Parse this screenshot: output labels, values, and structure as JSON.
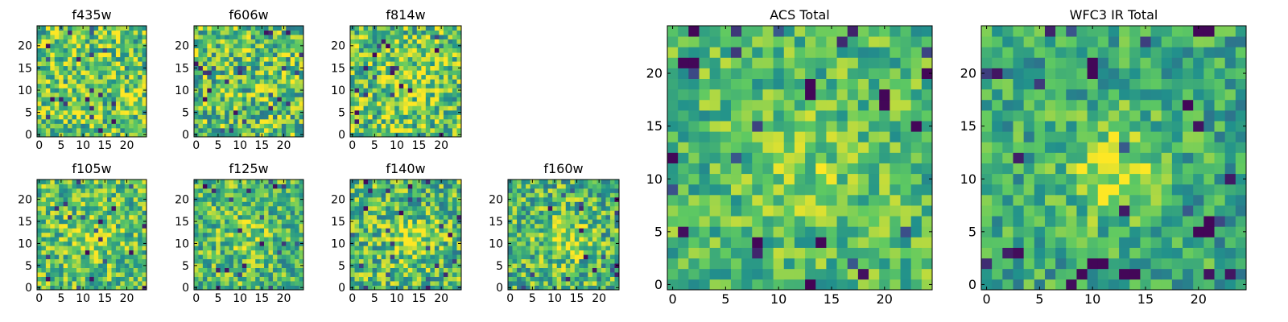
{
  "figure": {
    "background": "#ffffff",
    "colormap": "viridis",
    "colormap_stops": [
      "#440154",
      "#3b528b",
      "#21918c",
      "#5ec962",
      "#fde725"
    ]
  },
  "chart_data": [
    {
      "id": "f435w",
      "type": "heatmap",
      "title": "f435w",
      "grid_size": 25,
      "xticks": [
        0,
        5,
        10,
        15,
        20
      ],
      "yticks": [
        0,
        5,
        10,
        15,
        20
      ],
      "xlim": [
        -0.5,
        24.5
      ],
      "ylim": [
        -0.5,
        24.5
      ],
      "values_summary": "noise field, mean ~0.78 of colormap range, few dark pixels",
      "seed": 11,
      "mean": 0.74,
      "spread": 0.32,
      "blobs": []
    },
    {
      "id": "f606w",
      "type": "heatmap",
      "title": "f606w",
      "grid_size": 25,
      "xticks": [
        0,
        5,
        10,
        15,
        20
      ],
      "yticks": [
        0,
        5,
        10,
        15,
        20
      ],
      "xlim": [
        -0.5,
        24.5
      ],
      "ylim": [
        -0.5,
        24.5
      ],
      "seed": 23,
      "mean": 0.72,
      "spread": 0.34,
      "blobs": []
    },
    {
      "id": "f814w",
      "type": "heatmap",
      "title": "f814w",
      "grid_size": 25,
      "xticks": [
        0,
        5,
        10,
        15,
        20
      ],
      "yticks": [
        0,
        5,
        10,
        15,
        20
      ],
      "xlim": [
        -0.5,
        24.5
      ],
      "ylim": [
        -0.5,
        24.5
      ],
      "seed": 37,
      "mean": 0.72,
      "spread": 0.32,
      "blobs": [
        {
          "x": 12,
          "y": 12,
          "sigma": 4,
          "amp": 0.15
        }
      ]
    },
    {
      "id": "f105w",
      "type": "heatmap",
      "title": "f105w",
      "grid_size": 25,
      "xticks": [
        0,
        5,
        10,
        15,
        20
      ],
      "yticks": [
        0,
        5,
        10,
        15,
        20
      ],
      "xlim": [
        -0.5,
        24.5
      ],
      "ylim": [
        -0.5,
        24.5
      ],
      "seed": 41,
      "mean": 0.7,
      "spread": 0.28,
      "blobs": [
        {
          "x": 12,
          "y": 11,
          "sigma": 4,
          "amp": 0.12
        }
      ]
    },
    {
      "id": "f125w",
      "type": "heatmap",
      "title": "f125w",
      "grid_size": 25,
      "xticks": [
        0,
        5,
        10,
        15,
        20
      ],
      "yticks": [
        0,
        5,
        10,
        15,
        20
      ],
      "xlim": [
        -0.5,
        24.5
      ],
      "ylim": [
        -0.5,
        24.5
      ],
      "seed": 53,
      "mean": 0.68,
      "spread": 0.28,
      "blobs": [
        {
          "x": 12,
          "y": 12,
          "sigma": 4,
          "amp": 0.12
        }
      ]
    },
    {
      "id": "f140w",
      "type": "heatmap",
      "title": "f140w",
      "grid_size": 25,
      "xticks": [
        0,
        5,
        10,
        15,
        20
      ],
      "yticks": [
        0,
        5,
        10,
        15,
        20
      ],
      "xlim": [
        -0.5,
        24.5
      ],
      "ylim": [
        -0.5,
        24.5
      ],
      "seed": 67,
      "mean": 0.68,
      "spread": 0.3,
      "blobs": [
        {
          "x": 13,
          "y": 11,
          "sigma": 3.5,
          "amp": 0.22
        }
      ]
    },
    {
      "id": "f160w",
      "type": "heatmap",
      "title": "f160w",
      "grid_size": 25,
      "xticks": [
        0,
        5,
        10,
        15,
        20
      ],
      "yticks": [
        0,
        5,
        10,
        15,
        20
      ],
      "xlim": [
        -0.5,
        24.5
      ],
      "ylim": [
        -0.5,
        24.5
      ],
      "seed": 79,
      "mean": 0.66,
      "spread": 0.3,
      "blobs": [
        {
          "x": 12,
          "y": 11,
          "sigma": 3.5,
          "amp": 0.25
        }
      ]
    },
    {
      "id": "acs-total",
      "type": "heatmap",
      "title": "ACS Total",
      "grid_size": 25,
      "xticks": [
        0,
        5,
        10,
        15,
        20
      ],
      "yticks": [
        0,
        5,
        10,
        15,
        20
      ],
      "xlim": [
        -0.5,
        24.5
      ],
      "ylim": [
        -0.5,
        24.5
      ],
      "seed": 97,
      "mean": 0.68,
      "spread": 0.22,
      "blobs": [
        {
          "x": 13,
          "y": 11,
          "sigma": 4,
          "amp": 0.12
        }
      ],
      "dark_pixels": [
        [
          2,
          21
        ],
        [
          1,
          21
        ],
        [
          13,
          19
        ],
        [
          13,
          18
        ],
        [
          20,
          17
        ],
        [
          20,
          18
        ],
        [
          23,
          15
        ],
        [
          0,
          12
        ],
        [
          8,
          4
        ],
        [
          14,
          4
        ],
        [
          24,
          20
        ]
      ]
    },
    {
      "id": "wfc3-ir-total",
      "type": "heatmap",
      "title": "WFC3 IR Total",
      "grid_size": 25,
      "xticks": [
        0,
        5,
        10,
        15,
        20
      ],
      "yticks": [
        0,
        5,
        10,
        15,
        20
      ],
      "xlim": [
        -0.5,
        24.5
      ],
      "ylim": [
        -0.5,
        24.5
      ],
      "seed": 113,
      "mean": 0.6,
      "spread": 0.22,
      "blobs": [
        {
          "x": 12,
          "y": 11,
          "sigma": 3.5,
          "amp": 0.3
        }
      ],
      "dark_pixels": [
        [
          10,
          2
        ],
        [
          11,
          2
        ],
        [
          13,
          1
        ],
        [
          14,
          1
        ],
        [
          20,
          5
        ],
        [
          21,
          5
        ],
        [
          21,
          6
        ],
        [
          10,
          20
        ],
        [
          10,
          21
        ],
        [
          20,
          24
        ],
        [
          21,
          24
        ],
        [
          19,
          17
        ]
      ]
    }
  ]
}
